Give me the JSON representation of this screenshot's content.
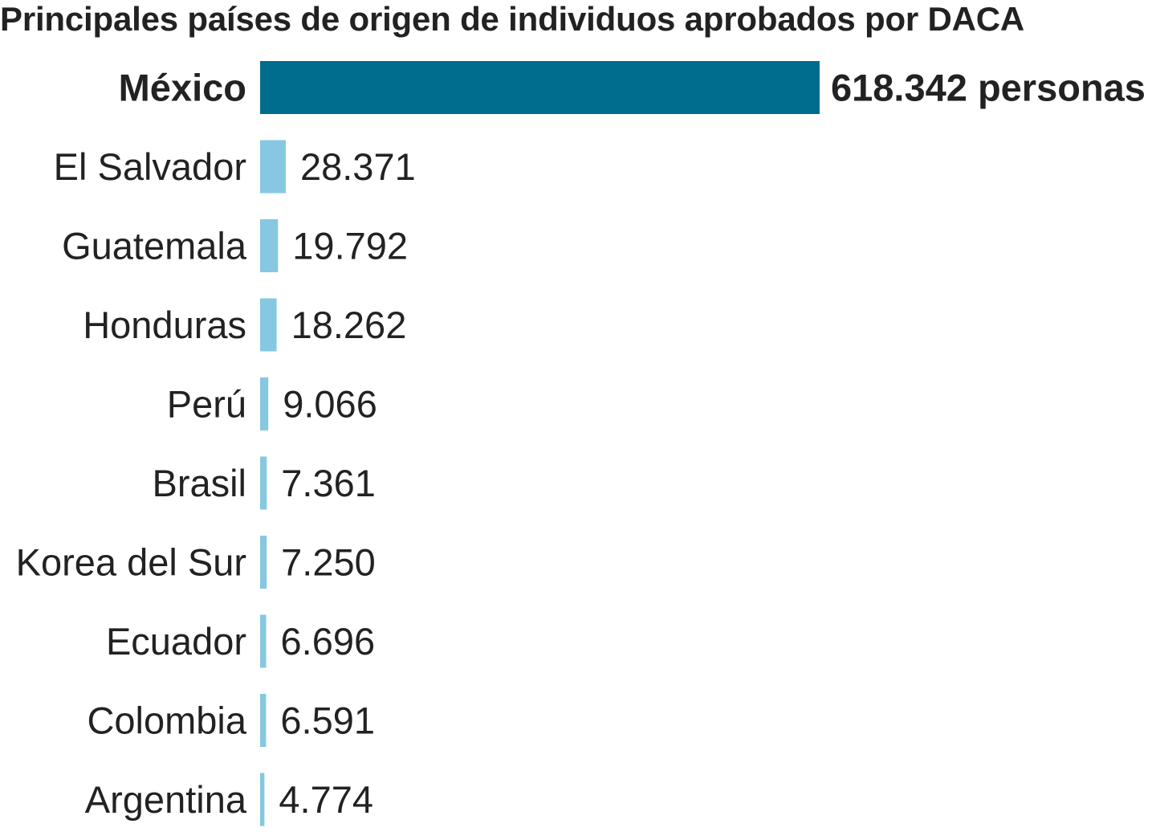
{
  "chart_data": {
    "type": "bar",
    "orientation": "horizontal",
    "title": "Principales países de origen de individuos aprobados por DACA",
    "categories": [
      "México",
      "El Salvador",
      "Guatemala",
      "Honduras",
      "Perú",
      "Brasil",
      "Korea del Sur",
      "Ecuador",
      "Colombia",
      "Argentina"
    ],
    "values": [
      618342,
      28371,
      19792,
      18262,
      9066,
      7361,
      7250,
      6696,
      6591,
      4774
    ],
    "value_labels": [
      "618.342 personas",
      "28.371",
      "19.792",
      "18.262",
      "9.066",
      "7.361",
      "7.250",
      "6.696",
      "6.591",
      "4.774"
    ],
    "highlight_index": 0,
    "colors": {
      "highlight": "#006d8f",
      "default": "#86c8e1",
      "text": "#222222"
    },
    "xlim": [
      0,
      618342
    ],
    "grid": false,
    "legend": "none"
  }
}
